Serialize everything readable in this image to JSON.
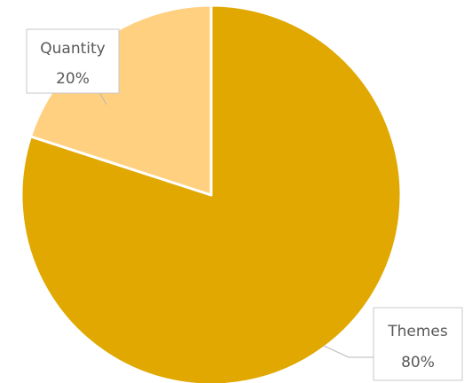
{
  "chart_data": {
    "type": "pie",
    "title": "",
    "categories": [
      "Themes",
      "Quantity"
    ],
    "values": [
      80,
      20
    ],
    "value_labels": [
      "80%",
      "20%"
    ],
    "colors": [
      "#E0A800",
      "#FFD080"
    ],
    "slice_border_color": "#ffffff",
    "start_angle_deg": 0,
    "direction": "clockwise",
    "legend": "none",
    "data_labels": "category-and-percent, outside-with-leader-lines"
  }
}
